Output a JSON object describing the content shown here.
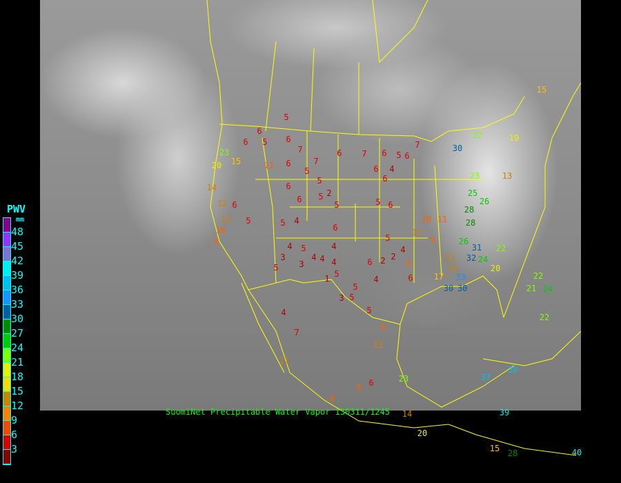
{
  "caption": "SuomiNet Precipitable Water Vapor 130311/1245",
  "legend": {
    "title": "PWV",
    "unit": "mm",
    "labels": [
      "48",
      "45",
      "42",
      "39",
      "36",
      "33",
      "30",
      "27",
      "24",
      "21",
      "18",
      "15",
      "12",
      "9",
      "6",
      "3"
    ],
    "colors": [
      "#8b008b",
      "#9b30ff",
      "#8470d0",
      "#00eeee",
      "#00bfee",
      "#1e90ff",
      "#005f9f",
      "#008b00",
      "#00cd00",
      "#7fff00",
      "#eeee00",
      "#ffd700",
      "#cd8500",
      "#ff8000",
      "#ff4500",
      "#dd0000",
      "#8b0000"
    ]
  },
  "map": {
    "background": "grayscale IR satellite imagery",
    "border_color": "#ffff00"
  },
  "stations": [
    "5",
    "6",
    "6",
    "6",
    "5",
    "7",
    "6",
    "5",
    "7",
    "5",
    "6",
    "7",
    "6",
    "5",
    "6",
    "7",
    "6",
    "4",
    "6",
    "5",
    "23",
    "20",
    "15",
    "11",
    "14",
    "12",
    "6",
    "13",
    "10",
    "9",
    "5",
    "6",
    "6",
    "5",
    "5",
    "2",
    "6",
    "4",
    "5",
    "5",
    "4",
    "3",
    "5",
    "3",
    "4",
    "4",
    "4",
    "4",
    "1",
    "5",
    "3",
    "5",
    "5",
    "4",
    "5",
    "8",
    "12",
    "4",
    "7",
    "12",
    "6",
    "8",
    "6",
    "5",
    "2",
    "2",
    "4",
    "6",
    "6",
    "9",
    "12",
    "10",
    "11",
    "9",
    "12",
    "13",
    "17",
    "22",
    "30",
    "23",
    "25",
    "26",
    "28",
    "28",
    "26",
    "32",
    "31",
    "24",
    "20",
    "22",
    "33",
    "30",
    "30",
    "13",
    "19",
    "15",
    "22",
    "21",
    "24",
    "22",
    "20",
    "15",
    "28",
    "37",
    "38",
    "39",
    "40",
    "23",
    "14",
    "8"
  ]
}
